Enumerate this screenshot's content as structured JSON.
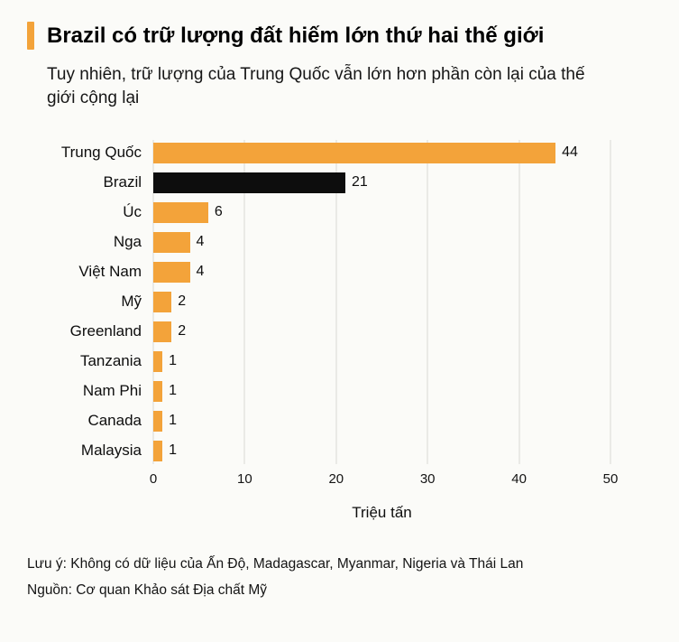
{
  "accent_color": "#F3A33A",
  "header": {
    "title": "Brazil có trữ lượng đất hiếm lớn thứ hai thế giới",
    "subtitle": "Tuy nhiên, trữ lượng của Trung Quốc vẫn lớn hơn phần còn lại của thế giới cộng lại"
  },
  "chart_data": {
    "type": "bar",
    "orientation": "horizontal",
    "categories": [
      "Trung Quốc",
      "Brazil",
      "Úc",
      "Nga",
      "Việt Nam",
      "Mỹ",
      "Greenland",
      "Tanzania",
      "Nam Phi",
      "Canada",
      "Malaysia"
    ],
    "values": [
      44,
      21,
      6,
      4,
      4,
      2,
      2,
      1,
      1,
      1,
      1
    ],
    "bar_color": "#F3A33A",
    "highlight": {
      "category": "Brazil",
      "color": "#0d0d0d"
    },
    "xlabel": "Triệu tấn",
    "xlim": [
      0,
      50
    ],
    "xticks": [
      0,
      10,
      20,
      30,
      40,
      50
    ],
    "grid": true,
    "legend": "none"
  },
  "footer": {
    "note": "Lưu ý: Không có dữ liệu của Ấn Độ, Madagascar, Myanmar, Nigeria và Thái Lan",
    "source": "Nguồn: Cơ quan Khảo sát Địa chất Mỹ"
  }
}
